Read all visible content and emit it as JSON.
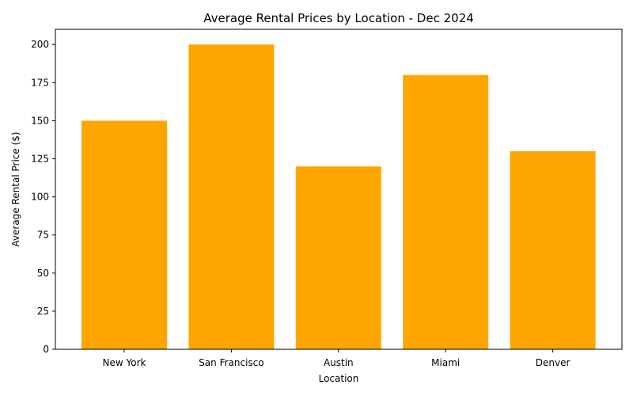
{
  "chart_data": {
    "type": "bar",
    "title": "Average Rental Prices by Location - Dec 2024",
    "xlabel": "Location",
    "ylabel": "Average Rental Price ($)",
    "categories": [
      "New York",
      "San Francisco",
      "Austin",
      "Miami",
      "Denver"
    ],
    "values": [
      150,
      200,
      120,
      180,
      130
    ],
    "ylim": [
      0,
      210
    ],
    "yticks": [
      0,
      25,
      50,
      75,
      100,
      125,
      150,
      175,
      200
    ],
    "bar_color": "#ffa500",
    "grid": false,
    "legend": "none"
  }
}
